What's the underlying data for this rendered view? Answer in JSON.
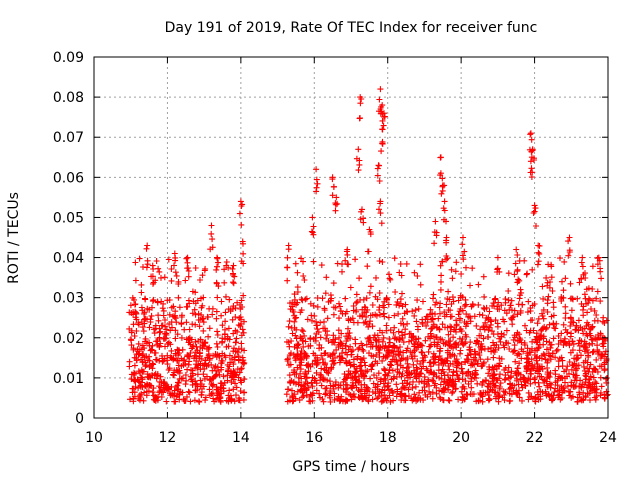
{
  "chart_data": {
    "type": "scatter",
    "title": "Day 191 of 2019, Rate Of TEC Index for receiver func",
    "xlabel": "GPS time / hours",
    "ylabel": "ROTI / TECUs",
    "xlim": [
      10,
      24
    ],
    "ylim": [
      0,
      0.09
    ],
    "grid": true,
    "marker": "+",
    "color": "#ff0000",
    "x_ticks": [
      "10",
      "12",
      "14",
      "16",
      "18",
      "20",
      "22",
      "24"
    ],
    "y_ticks": [
      "0",
      "0.01",
      "0.02",
      "0.03",
      "0.04",
      "0.05",
      "0.06",
      "0.07",
      "0.08",
      "0.09"
    ],
    "series": [
      {
        "name": "ROTI",
        "note": "dense scatter; data segments 10.95-14.1 h and 15.25-24 h, gap 14.1-15.25 h",
        "segments": [
          [
            10.95,
            14.1
          ],
          [
            15.25,
            24.0
          ]
        ],
        "baseline": [
          0.004,
          0.02
        ],
        "outliers": [
          [
            11.45,
            0.043
          ],
          [
            11.6,
            0.038
          ],
          [
            12.2,
            0.041
          ],
          [
            12.55,
            0.04
          ],
          [
            13.2,
            0.048
          ],
          [
            13.35,
            0.04
          ],
          [
            13.8,
            0.038
          ],
          [
            14.0,
            0.054
          ],
          [
            14.05,
            0.044
          ],
          [
            15.3,
            0.043
          ],
          [
            15.95,
            0.05
          ],
          [
            16.05,
            0.062
          ],
          [
            16.5,
            0.06
          ],
          [
            16.6,
            0.055
          ],
          [
            16.9,
            0.042
          ],
          [
            17.25,
            0.08
          ],
          [
            17.2,
            0.067
          ],
          [
            17.3,
            0.052
          ],
          [
            17.5,
            0.047
          ],
          [
            17.8,
            0.082
          ],
          [
            17.85,
            0.078
          ],
          [
            17.9,
            0.076
          ],
          [
            17.85,
            0.072
          ],
          [
            17.75,
            0.063
          ],
          [
            17.8,
            0.054
          ],
          [
            19.45,
            0.065
          ],
          [
            19.5,
            0.058
          ],
          [
            19.55,
            0.054
          ],
          [
            19.3,
            0.049
          ],
          [
            19.6,
            0.045
          ],
          [
            20.05,
            0.045
          ],
          [
            21.0,
            0.04
          ],
          [
            21.5,
            0.042
          ],
          [
            21.9,
            0.071
          ],
          [
            21.95,
            0.067
          ],
          [
            21.9,
            0.064
          ],
          [
            22.0,
            0.053
          ],
          [
            22.1,
            0.043
          ],
          [
            22.95,
            0.045
          ],
          [
            23.3,
            0.04
          ],
          [
            23.75,
            0.04
          ]
        ]
      }
    ]
  }
}
